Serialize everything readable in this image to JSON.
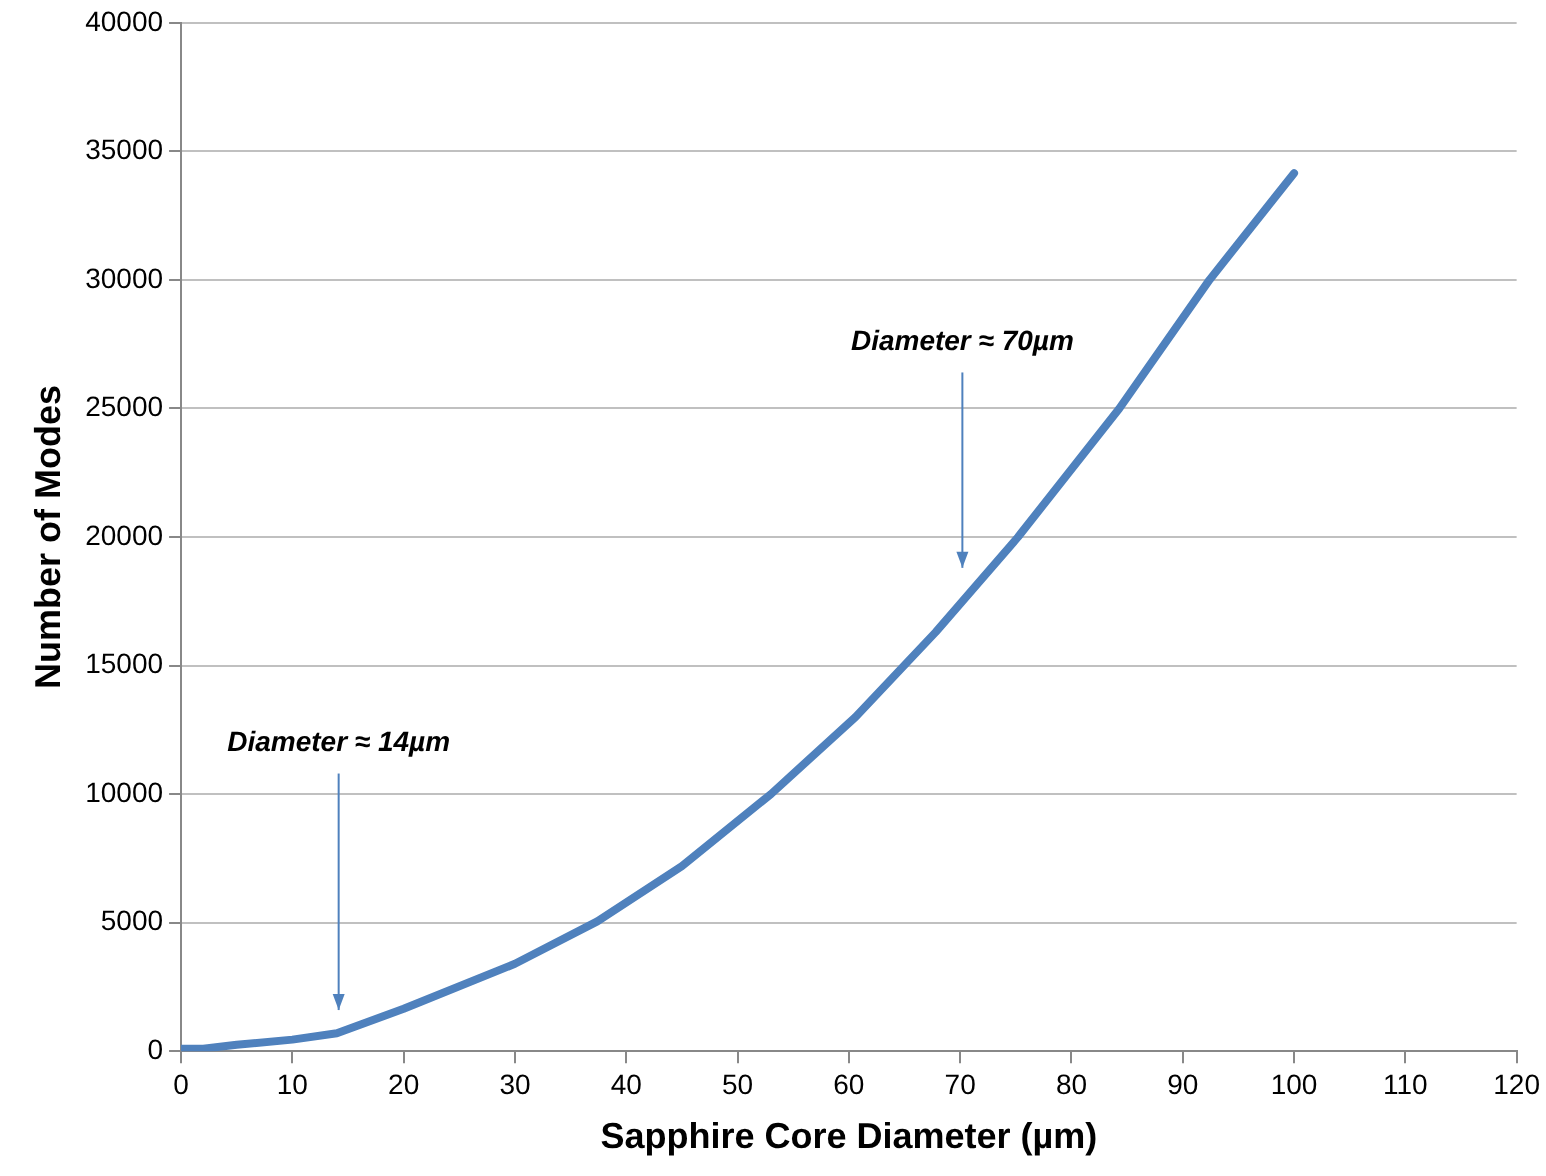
{
  "chart_data": {
    "type": "line",
    "xlabel": "Sapphire Core Diameter (µm)",
    "ylabel": "Number of Modes",
    "x": [
      0,
      2,
      5,
      10,
      14,
      20,
      30,
      37.4,
      45,
      53,
      60.6,
      67.8,
      75.2,
      84.3,
      92.4,
      100
    ],
    "series": [
      {
        "color": "#4f81bd",
        "values": [
          100,
          100,
          250,
          450,
          700,
          1650,
          3400,
          5050,
          7200,
          10000,
          13000,
          16300,
          20000,
          25000,
          30000,
          34150
        ]
      }
    ],
    "xlim": [
      0,
      120
    ],
    "xticks": [
      0,
      10,
      20,
      30,
      40,
      50,
      60,
      70,
      80,
      90,
      100,
      110,
      120
    ],
    "ylim": [
      0,
      40000
    ],
    "yticks": [
      0,
      5000,
      10000,
      15000,
      20000,
      25000,
      30000,
      35000,
      40000
    ],
    "grid": "y",
    "legend": false,
    "marker": "none",
    "line_style": "solid",
    "annotations": [
      "Diameter ≈ 14µm",
      "Diameter ≈ 70µm"
    ]
  }
}
